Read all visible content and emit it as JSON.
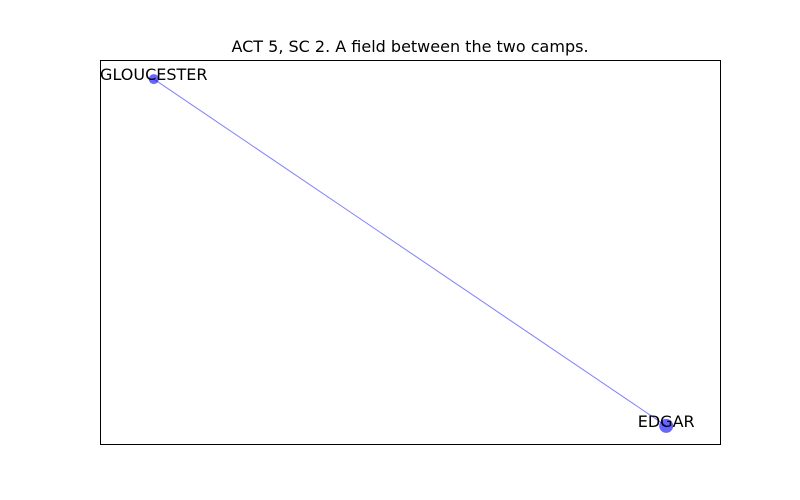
{
  "chart_data": {
    "type": "network",
    "title": "ACT 5, SC 2. A field between the two camps.",
    "nodes": [
      {
        "id": "GLOUCESTER",
        "label": "GLOUCESTER",
        "x": -1.0,
        "y": 1.0,
        "weight": 1
      },
      {
        "id": "EDGAR",
        "label": "EDGAR",
        "x": 1.0,
        "y": -1.0,
        "weight": 2
      }
    ],
    "edges": [
      {
        "source": "GLOUCESTER",
        "target": "EDGAR"
      }
    ],
    "xlim": [
      -1.21,
      1.21
    ],
    "ylim": [
      -1.11,
      1.11
    ],
    "colors": {
      "node": "#0000ff",
      "edge": "#0000ff",
      "frame": "#000000"
    },
    "opacity": {
      "node": 0.6,
      "edge": 0.5
    }
  }
}
